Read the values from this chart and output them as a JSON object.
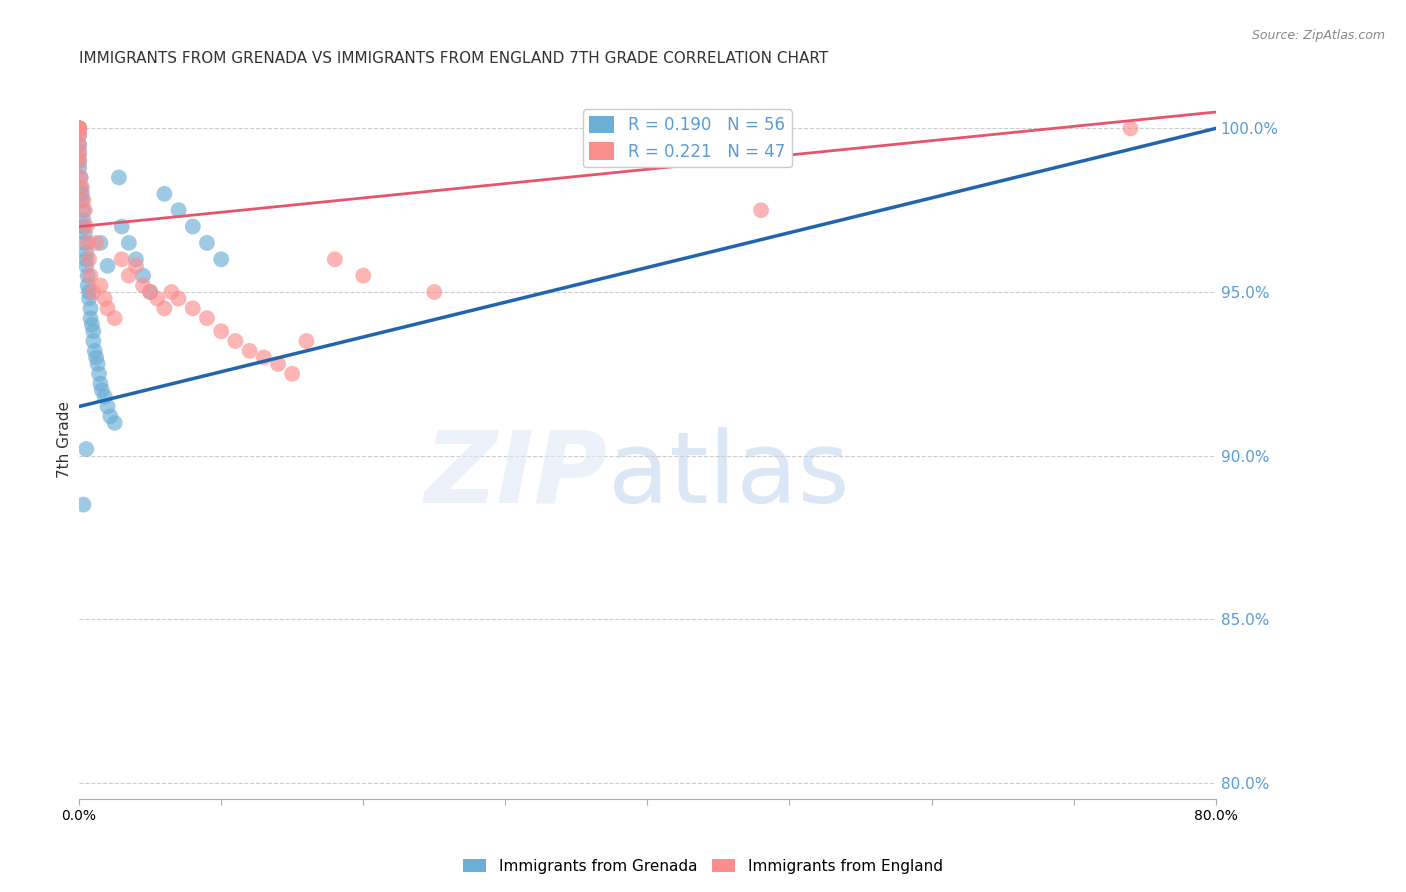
{
  "title": "IMMIGRANTS FROM GRENADA VS IMMIGRANTS FROM ENGLAND 7TH GRADE CORRELATION CHART",
  "source": "Source: ZipAtlas.com",
  "ylabel": "7th Grade",
  "series1_label": "Immigrants from Grenada",
  "series2_label": "Immigrants from England",
  "blue_color": "#6baed6",
  "pink_color": "#fc8d8d",
  "blue_line_color": "#2166ac",
  "pink_line_color": "#e8546a",
  "blue_r": "0.190",
  "blue_n": "56",
  "pink_r": "0.221",
  "pink_n": "47",
  "xlim": [
    0.0,
    0.8
  ],
  "ylim": [
    79.5,
    101.5
  ],
  "yticks": [
    80.0,
    85.0,
    90.0,
    95.0,
    100.0
  ],
  "ytick_labels": [
    "80.0%",
    "85.0%",
    "90.0%",
    "95.0%",
    "100.0%"
  ],
  "xticks": [
    0.0,
    0.1,
    0.2,
    0.3,
    0.4,
    0.5,
    0.6,
    0.7,
    0.8
  ],
  "xtick_labels": [
    "0.0%",
    "",
    "",
    "",
    "",
    "",
    "",
    "",
    "80.0%"
  ],
  "background_color": "#ffffff",
  "grid_color": "#cccccc",
  "tick_color": "#5b9bd5",
  "blue_scatter_x": [
    0.0,
    0.0,
    0.0,
    0.0,
    0.0,
    0.0,
    0.0,
    0.0,
    0.0,
    0.0,
    0.001,
    0.001,
    0.002,
    0.002,
    0.003,
    0.003,
    0.003,
    0.004,
    0.004,
    0.005,
    0.005,
    0.005,
    0.006,
    0.006,
    0.007,
    0.007,
    0.008,
    0.008,
    0.009,
    0.01,
    0.01,
    0.011,
    0.012,
    0.013,
    0.014,
    0.015,
    0.016,
    0.018,
    0.02,
    0.022,
    0.025,
    0.028,
    0.03,
    0.035,
    0.04,
    0.045,
    0.05,
    0.06,
    0.07,
    0.08,
    0.09,
    0.1,
    0.015,
    0.02,
    0.005,
    0.003
  ],
  "blue_scatter_y": [
    100.0,
    100.0,
    100.0,
    100.0,
    100.0,
    99.8,
    99.5,
    99.3,
    99.0,
    98.8,
    98.5,
    98.2,
    98.0,
    97.8,
    97.5,
    97.2,
    97.0,
    96.8,
    96.5,
    96.2,
    96.0,
    95.8,
    95.5,
    95.2,
    95.0,
    94.8,
    94.5,
    94.2,
    94.0,
    93.8,
    93.5,
    93.2,
    93.0,
    92.8,
    92.5,
    92.2,
    92.0,
    91.8,
    91.5,
    91.2,
    91.0,
    98.5,
    97.0,
    96.5,
    96.0,
    95.5,
    95.0,
    98.0,
    97.5,
    97.0,
    96.5,
    96.0,
    96.5,
    95.8,
    90.2,
    88.5
  ],
  "pink_scatter_x": [
    0.0,
    0.0,
    0.0,
    0.0,
    0.0,
    0.0,
    0.0,
    0.0,
    0.0,
    0.0,
    0.001,
    0.002,
    0.003,
    0.004,
    0.005,
    0.006,
    0.007,
    0.008,
    0.01,
    0.012,
    0.015,
    0.018,
    0.02,
    0.025,
    0.03,
    0.035,
    0.04,
    0.045,
    0.05,
    0.055,
    0.06,
    0.065,
    0.07,
    0.08,
    0.09,
    0.1,
    0.11,
    0.12,
    0.13,
    0.14,
    0.15,
    0.16,
    0.18,
    0.2,
    0.25,
    0.48,
    0.74
  ],
  "pink_scatter_y": [
    100.0,
    100.0,
    100.0,
    100.0,
    100.0,
    100.0,
    99.8,
    99.5,
    99.2,
    99.0,
    98.5,
    98.2,
    97.8,
    97.5,
    97.0,
    96.5,
    96.0,
    95.5,
    95.0,
    96.5,
    95.2,
    94.8,
    94.5,
    94.2,
    96.0,
    95.5,
    95.8,
    95.2,
    95.0,
    94.8,
    94.5,
    95.0,
    94.8,
    94.5,
    94.2,
    93.8,
    93.5,
    93.2,
    93.0,
    92.8,
    92.5,
    93.5,
    96.0,
    95.5,
    95.0,
    97.5,
    100.0
  ],
  "blue_trend_x": [
    0.0,
    0.8
  ],
  "blue_trend_y": [
    91.5,
    100.0
  ],
  "pink_trend_x": [
    0.0,
    0.8
  ],
  "pink_trend_y": [
    97.0,
    100.5
  ]
}
